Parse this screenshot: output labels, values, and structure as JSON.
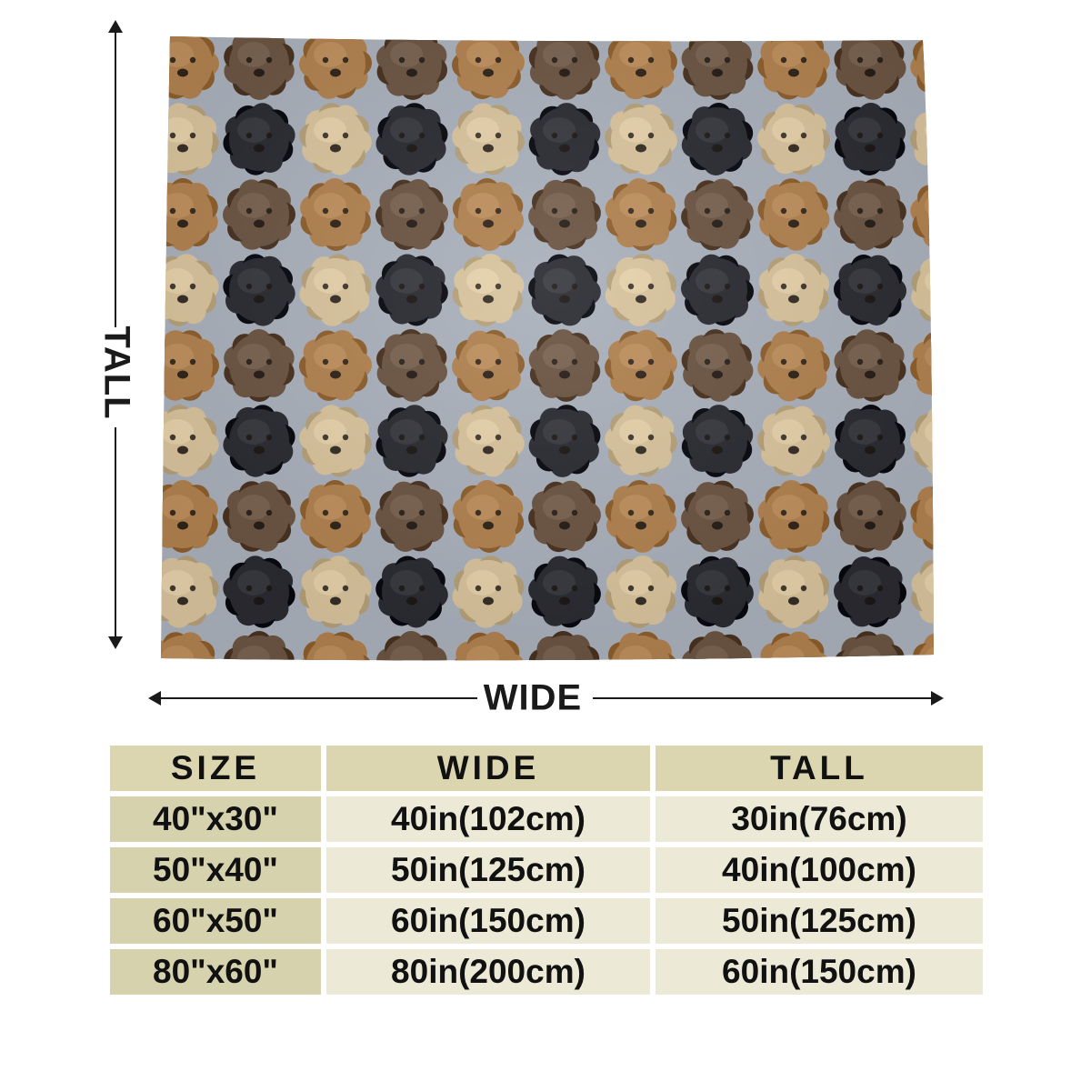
{
  "dimension_labels": {
    "tall": "TALL",
    "wide": "WIDE"
  },
  "blanket": {
    "background_color": "#a9b0bb",
    "pattern": "dog-face-icon",
    "dog_colors": {
      "apricot": "#b0814f",
      "chocolate": "#6b5442",
      "cream": "#d8c39c",
      "black": "#2a2b31"
    }
  },
  "size_table": {
    "headers": [
      "SIZE",
      "WIDE",
      "TALL"
    ],
    "rows": [
      {
        "size": "40\"x30\"",
        "wide": "40in(102cm)",
        "tall": "30in(76cm)"
      },
      {
        "size": "50\"x40\"",
        "wide": "50in(125cm)",
        "tall": "40in(100cm)"
      },
      {
        "size": "60\"x50\"",
        "wide": "60in(150cm)",
        "tall": "50in(125cm)"
      },
      {
        "size": "80\"x60\"",
        "wide": "80in(200cm)",
        "tall": "60in(150cm)"
      }
    ]
  }
}
